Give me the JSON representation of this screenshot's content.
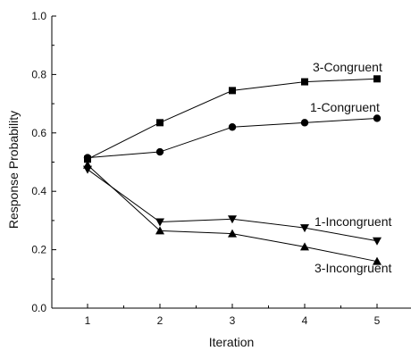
{
  "chart_data": {
    "type": "line",
    "title": "",
    "xlabel": "Iteration",
    "ylabel": "Response Probability",
    "x": [
      1,
      2,
      3,
      4,
      5
    ],
    "x_ticks": [
      "1",
      "2",
      "3",
      "4",
      "5"
    ],
    "xlim": [
      0.5,
      5.5
    ],
    "ylim": [
      0.0,
      1.0
    ],
    "y_ticks": [
      "0.0",
      "0.2",
      "0.4",
      "0.6",
      "0.8",
      "1.0"
    ],
    "grid": false,
    "legend": "none",
    "series": [
      {
        "name": "3-Congruent",
        "marker": "square",
        "values": [
          0.51,
          0.635,
          0.745,
          0.775,
          0.785
        ]
      },
      {
        "name": "1-Congruent",
        "marker": "circle",
        "values": [
          0.515,
          0.535,
          0.62,
          0.635,
          0.65
        ]
      },
      {
        "name": "1-Incongruent",
        "marker": "triangle-down",
        "values": [
          0.475,
          0.295,
          0.305,
          0.275,
          0.23
        ]
      },
      {
        "name": "3-Incongruent",
        "marker": "triangle-up",
        "values": [
          0.49,
          0.265,
          0.255,
          0.21,
          0.16
        ]
      }
    ]
  }
}
